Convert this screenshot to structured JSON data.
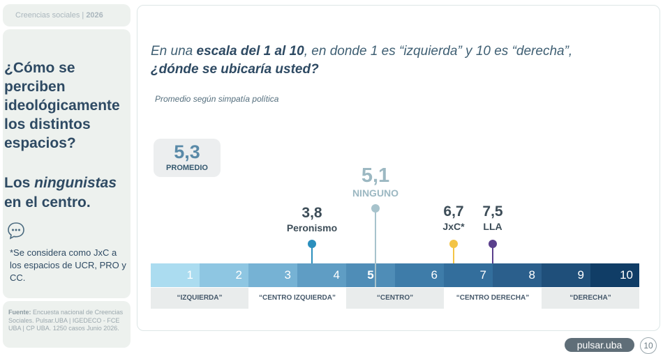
{
  "header": {
    "label": "Creencias sociales",
    "year": "2026"
  },
  "side": {
    "title": "¿Cómo se perciben ideológicamente los distintos espacios?",
    "subtitle_pre": "Los ",
    "subtitle_em": "ningunistas",
    "subtitle_post": " en el centro.",
    "note": "*Se considera como JxC a los espacios de UCR, PRO y CC.",
    "chat_icon": "chat-bubble-icon"
  },
  "source": {
    "label": "Fuente:",
    "text": "Encuesta nacional de Creencias Sociales. Pulsar.UBA | IGEDECO - FCE UBA | CP UBA. 1250 casos Junio 2026."
  },
  "question": {
    "part1": "En una ",
    "part2": "escala del 1 al 10",
    "part3": ", en donde 1 es “izquierda” y 10 es “derecha”, ",
    "part4": "¿dónde se ubicaría usted?"
  },
  "subtitle": "Promedio según simpatía política",
  "promedio": {
    "value": "5,3",
    "label": "PROMEDIO"
  },
  "chart_data": {
    "type": "scatter",
    "title": "",
    "xlabel": "",
    "ylabel": "",
    "xlim": [
      1,
      10
    ],
    "scale_ticks": [
      "1",
      "2",
      "3",
      "4",
      "5",
      "6",
      "7",
      "8",
      "9",
      "10"
    ],
    "scale_colors": [
      "#abdcf0",
      "#8ec6e2",
      "#76b2d4",
      "#5f9dc4",
      "#4f8db7",
      "#3e7ca9",
      "#336e9c",
      "#2b5f8c",
      "#1f4f7a",
      "#103d66"
    ],
    "categories": [
      {
        "label": "“IZQUIERDA”",
        "from": 1,
        "to": 2
      },
      {
        "label": "“CENTRO IZQUIERDA”",
        "from": 3,
        "to": 4
      },
      {
        "label": "“CENTRO”",
        "from": 5,
        "to": 6
      },
      {
        "label": "“CENTRO DERECHA”",
        "from": 7,
        "to": 8
      },
      {
        "label": "“DERECHA”",
        "from": 9,
        "to": 10
      }
    ],
    "points": [
      {
        "name": "Peronismo",
        "value": 3.8,
        "display": "3,8",
        "color": "#2b8fbd",
        "label_color": "#3d4d58",
        "stem_color": "#2b8fbd"
      },
      {
        "name": "NINGUNO",
        "value": 5.1,
        "display": "5,1",
        "color": "#a7c3cc",
        "label_color": "#9cb8c2",
        "stem_color": "#a7c3cc"
      },
      {
        "name": "JxC*",
        "value": 6.7,
        "display": "6,7",
        "color": "#f3c445",
        "label_color": "#3d4d58",
        "stem_color": "#f3c445"
      },
      {
        "name": "LLA",
        "value": 7.5,
        "display": "7,5",
        "color": "#5a3f8c",
        "label_color": "#3d4d58",
        "stem_color": "#5a3f8c"
      }
    ]
  },
  "footer": {
    "brand": "pulsar.uba",
    "page": "10"
  }
}
